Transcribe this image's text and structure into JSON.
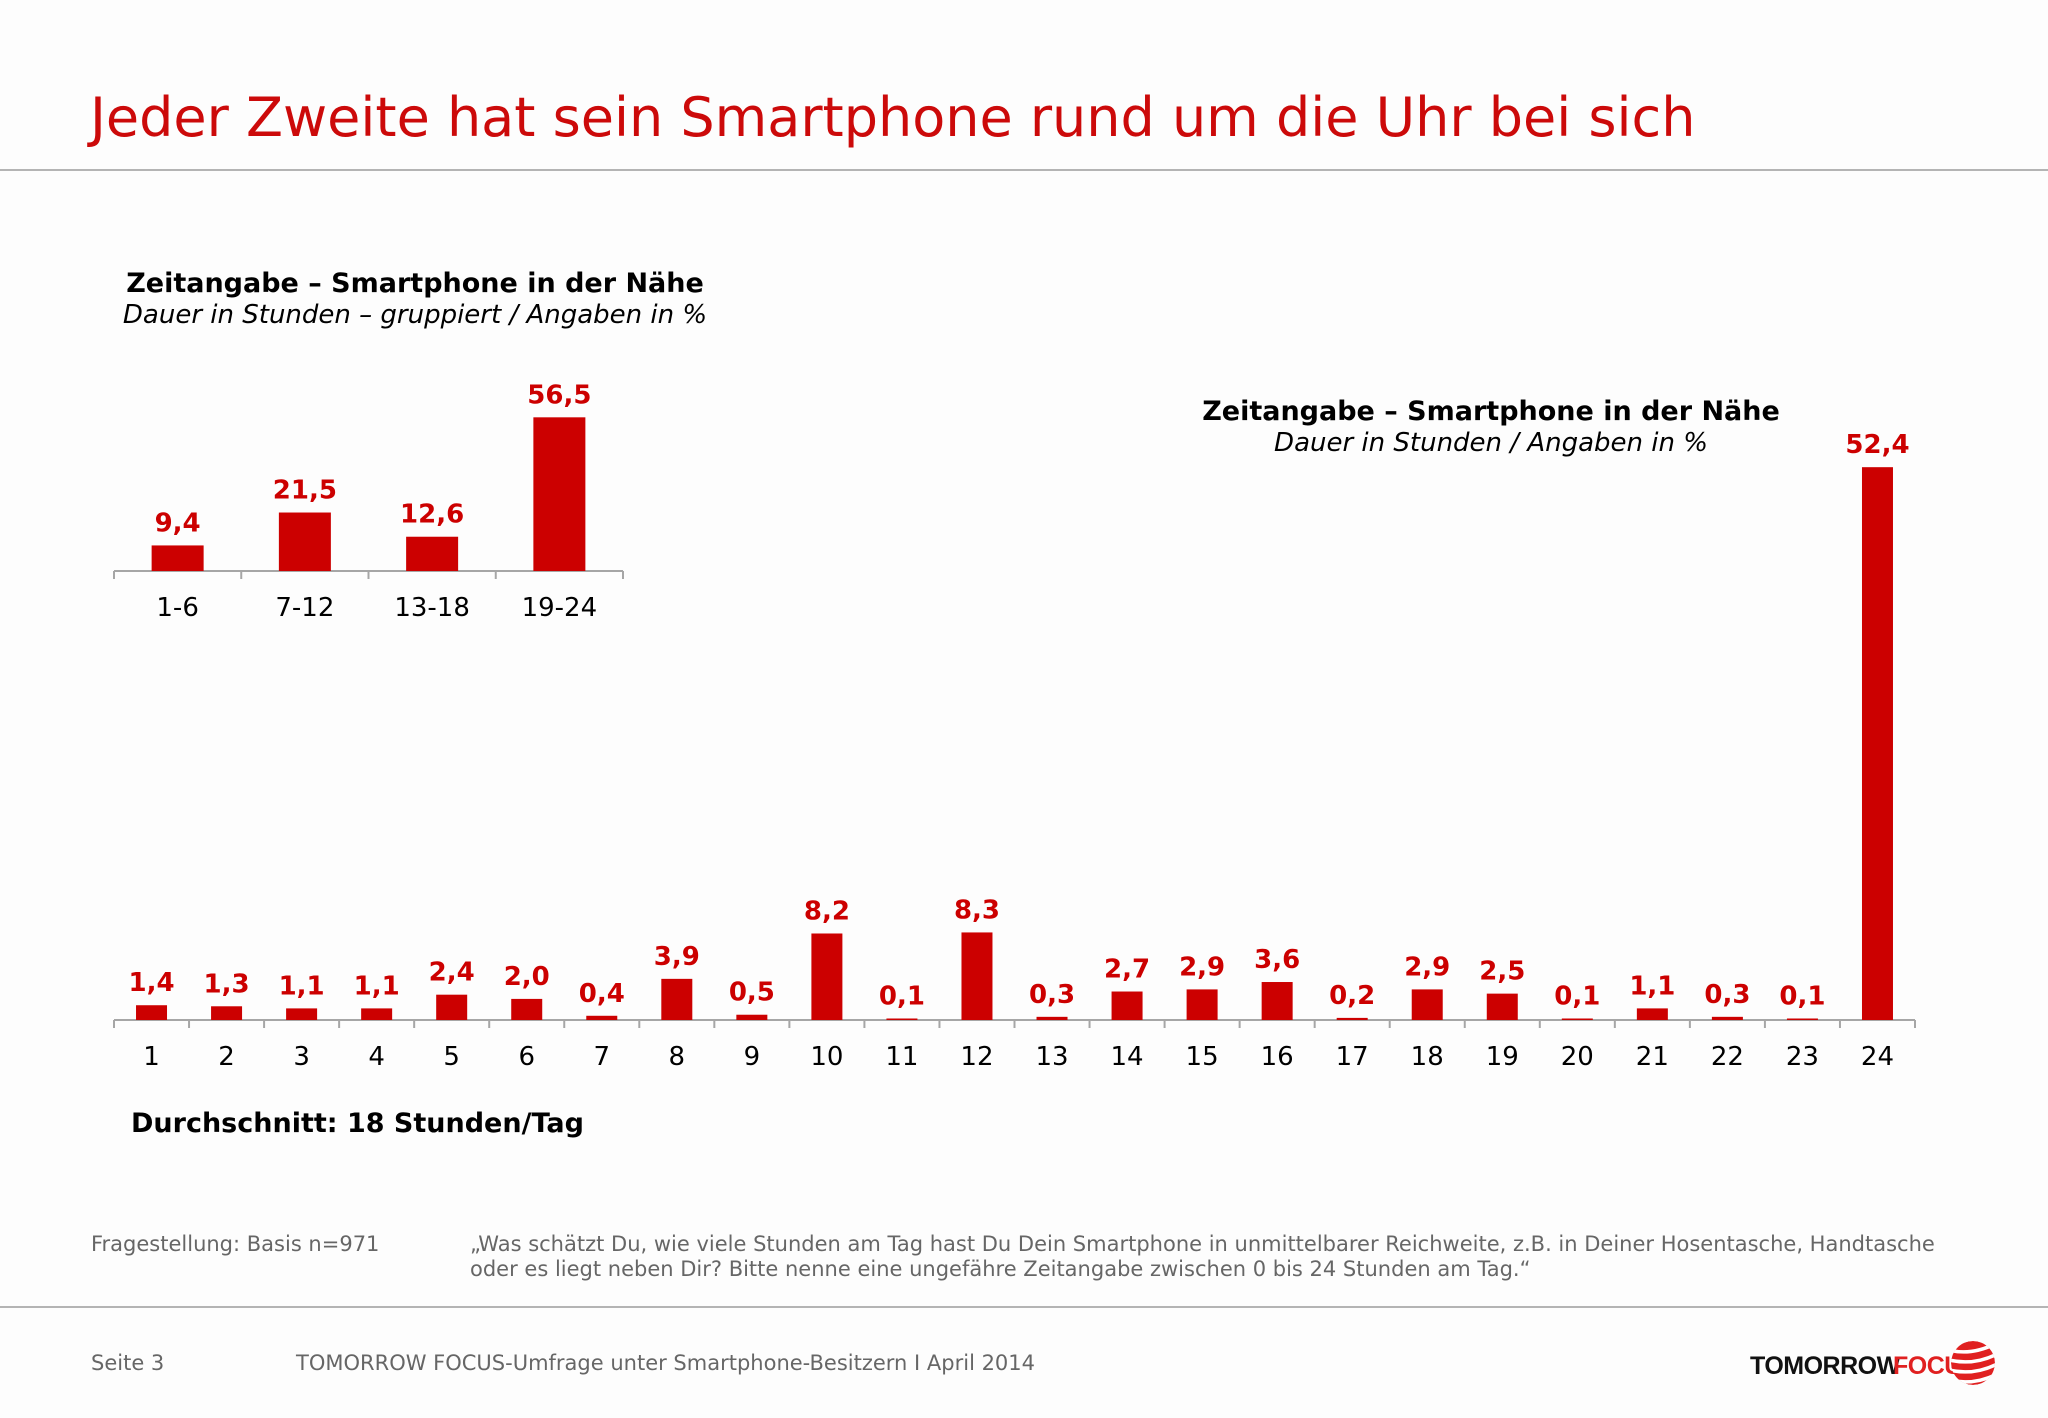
{
  "header": {
    "title": "Jeder Zweite hat sein Smartphone rund um die Uhr bei sich"
  },
  "colors": {
    "accent": "#cc0000",
    "axis": "#a6a6a6",
    "title": "#cc0a0a"
  },
  "chart_data": [
    {
      "type": "bar",
      "title": "Zeitangabe – Smartphone in der Nähe",
      "subtitle": "Dauer in Stunden – gruppiert / Angaben in %",
      "categories": [
        "1-6",
        "7-12",
        "13-18",
        "19-24"
      ],
      "values": [
        9.4,
        21.5,
        12.6,
        56.5
      ],
      "labels": [
        "9,4",
        "21,5",
        "12,6",
        "56,5"
      ],
      "grid": false
    },
    {
      "type": "bar",
      "title": "Zeitangabe – Smartphone in der Nähe",
      "subtitle": "Dauer in Stunden / Angaben in %",
      "categories": [
        "1",
        "2",
        "3",
        "4",
        "5",
        "6",
        "7",
        "8",
        "9",
        "10",
        "11",
        "12",
        "13",
        "14",
        "15",
        "16",
        "17",
        "18",
        "19",
        "20",
        "21",
        "22",
        "23",
        "24"
      ],
      "values": [
        1.4,
        1.3,
        1.1,
        1.1,
        2.4,
        2.0,
        0.4,
        3.9,
        0.5,
        8.2,
        0.1,
        8.3,
        0.3,
        2.7,
        2.9,
        3.6,
        0.2,
        2.9,
        2.5,
        0.1,
        1.1,
        0.3,
        0.1,
        52.4
      ],
      "labels": [
        "1,4",
        "1,3",
        "1,1",
        "1,1",
        "2,4",
        "2,0",
        "0,4",
        "3,9",
        "0,5",
        "8,2",
        "0,1",
        "8,3",
        "0,3",
        "2,7",
        "2,9",
        "3,6",
        "0,2",
        "2,9",
        "2,5",
        "0,1",
        "1,1",
        "0,3",
        "0,1",
        "52,4"
      ],
      "grid": false
    }
  ],
  "summary": {
    "average": "Durchschnitt: 18 Stunden/Tag"
  },
  "footnote": {
    "label": "Fragestellung: Basis n=971",
    "question_line1": "„Was schätzt Du, wie viele Stunden am Tag hast Du Dein Smartphone in unmittelbarer Reichweite, z.B. in Deiner Hosentasche, Handtasche",
    "question_line2": "oder es liegt neben Dir? Bitte nenne eine ungefähre Zeitangabe zwischen 0 bis 24 Stunden am Tag.“"
  },
  "footer": {
    "page": "Seite 3",
    "source": "TOMORROW FOCUS-Umfrage unter Smartphone-Besitzern I April 2014",
    "logo_word1": "TOMORROW",
    "logo_word2": "FOCUS"
  }
}
